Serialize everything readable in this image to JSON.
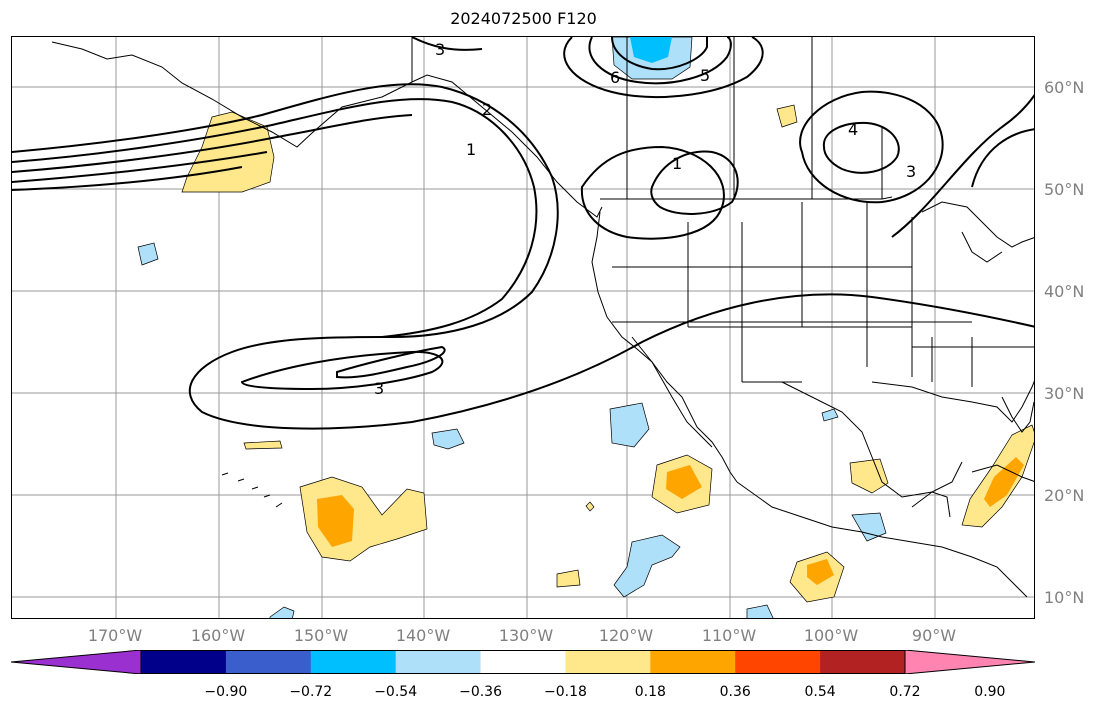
{
  "title": "2024072500 F120",
  "lat_labels": [
    "60°N",
    "50°N",
    "40°N",
    "30°N",
    "20°N",
    "10°N"
  ],
  "lon_labels": [
    "170°W",
    "160°W",
    "150°W",
    "140°W",
    "130°W",
    "120°W",
    "110°W",
    "100°W",
    "90°W"
  ],
  "contour_labels": [
    "3",
    "6",
    "5",
    "2",
    "1",
    "1",
    "4",
    "3",
    "3"
  ],
  "colorbar": {
    "colors": [
      "#9b30d0",
      "#00008b",
      "#3a5fcd",
      "#00bfff",
      "#aee0fa",
      "#ffffff",
      "#ffe88c",
      "#ffa500",
      "#ff4500",
      "#b22222",
      "#ff85b0"
    ],
    "ticks": [
      "−0.90",
      "−0.72",
      "−0.54",
      "−0.36",
      "−0.18",
      "0.18",
      "0.36",
      "0.54",
      "0.72",
      "0.90"
    ]
  }
}
